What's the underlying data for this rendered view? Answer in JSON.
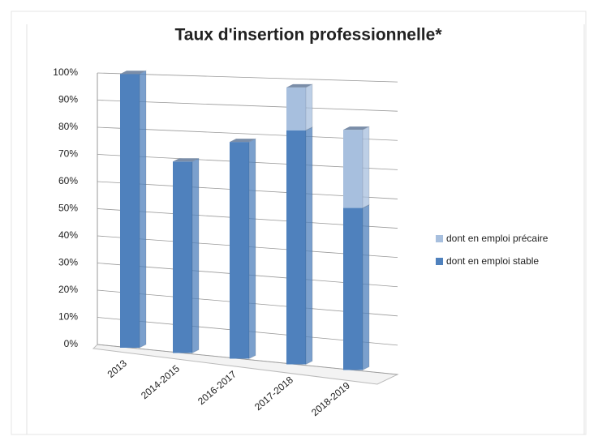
{
  "chart_data": {
    "type": "bar",
    "stacked": true,
    "title": "Taux d'insertion professionnelle*",
    "categories": [
      "2013",
      "2014-2015",
      "2016-2017",
      "2017-2018",
      "2018-2019"
    ],
    "series": [
      {
        "name": "dont en emploi stable",
        "color": "#4f81bd",
        "values": [
          100,
          69,
          77,
          82,
          56
        ]
      },
      {
        "name": "dont en emploi précaire",
        "color": "#a7bfde",
        "values": [
          0,
          0,
          0,
          15,
          27
        ]
      }
    ],
    "ylim": [
      0,
      100
    ],
    "yticks": [
      {
        "value": 0,
        "label": "0%"
      },
      {
        "value": 10,
        "label": "10%"
      },
      {
        "value": 20,
        "label": "20%"
      },
      {
        "value": 30,
        "label": "30%"
      },
      {
        "value": 40,
        "label": "40%"
      },
      {
        "value": 50,
        "label": "50%"
      },
      {
        "value": 60,
        "label": "60%"
      },
      {
        "value": 70,
        "label": "70%"
      },
      {
        "value": 80,
        "label": "80%"
      },
      {
        "value": 90,
        "label": "90%"
      },
      {
        "value": 100,
        "label": "100%"
      }
    ],
    "grid": true,
    "legend": "right"
  }
}
